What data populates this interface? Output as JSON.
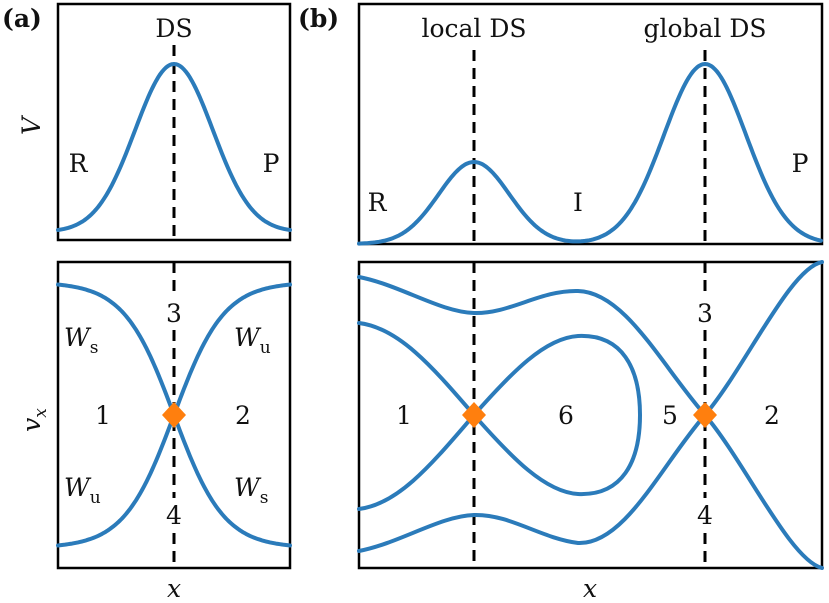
{
  "panel_a": {
    "tag": "(a)",
    "top": {
      "ds_label": "DS",
      "left_label": "R",
      "right_label": "P",
      "ylabel": "V"
    },
    "bottom": {
      "ylabel": "v",
      "ylabel_sub": "x",
      "xlabel": "x",
      "regions": [
        "1",
        "2",
        "3",
        "4"
      ],
      "manifolds": {
        "ws_top_left": {
          "main": "W",
          "sub": "s"
        },
        "wu_top_right": {
          "main": "W",
          "sub": "u"
        },
        "wu_bottom_left": {
          "main": "W",
          "sub": "u"
        },
        "ws_bottom_right": {
          "main": "W",
          "sub": "s"
        }
      }
    }
  },
  "panel_b": {
    "tag": "(b)",
    "top": {
      "local_ds_label": "local DS",
      "global_ds_label": "global DS",
      "left_label": "R",
      "mid_label": "I",
      "right_label": "P"
    },
    "bottom": {
      "xlabel": "x",
      "regions": [
        "1",
        "6",
        "5",
        "2",
        "3",
        "4"
      ]
    }
  },
  "colors": {
    "curve": "#2b7bba",
    "fixed_point": "#ff7f0e",
    "frame": "#000000"
  }
}
